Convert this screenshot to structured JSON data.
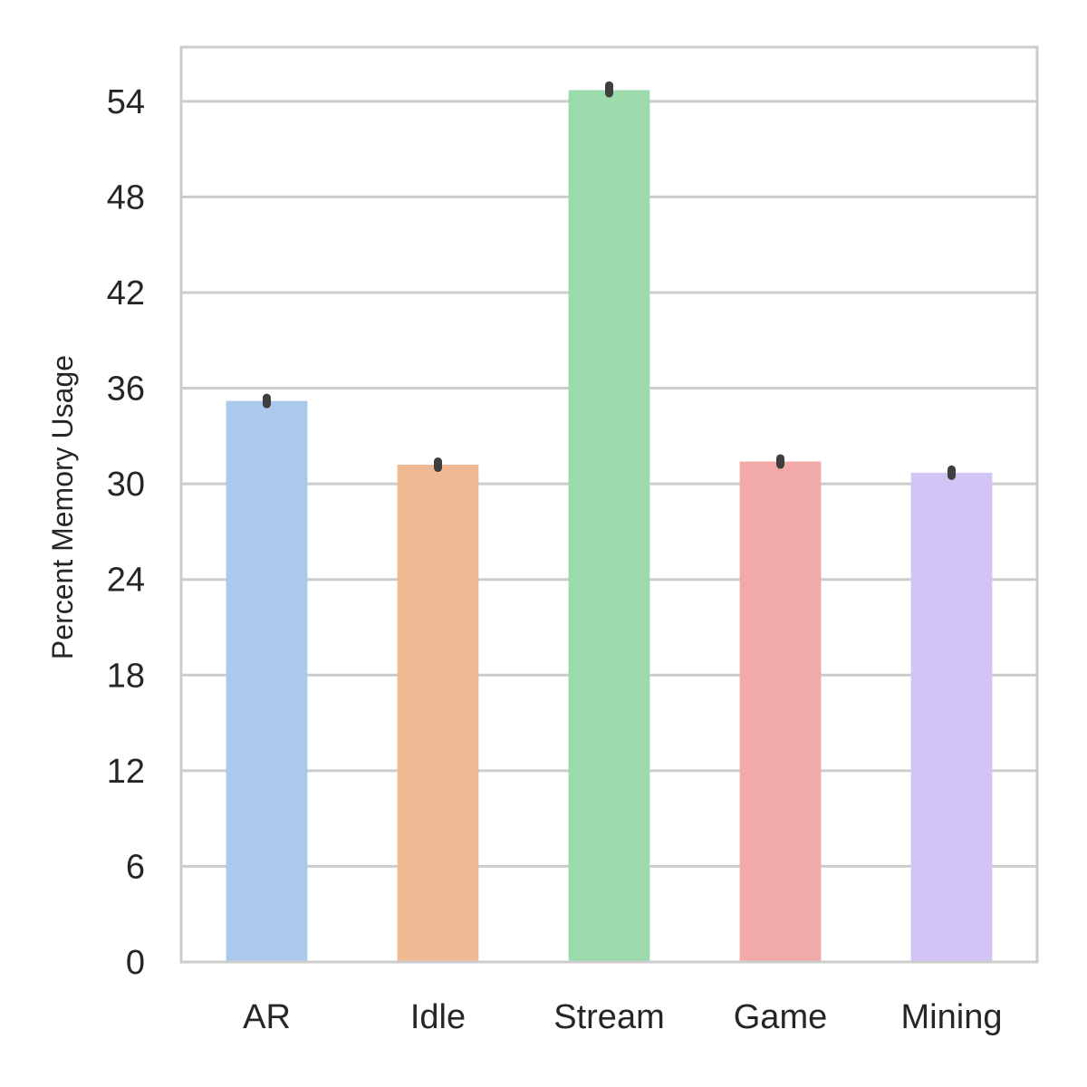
{
  "chart_data": {
    "type": "bar",
    "categories": [
      "AR",
      "Idle",
      "Stream",
      "Game",
      "Mining"
    ],
    "values": [
      35.2,
      31.2,
      54.7,
      31.4,
      30.7
    ],
    "error_bars": [
      [
        35.0,
        35.4
      ],
      [
        31.0,
        31.4
      ],
      [
        54.5,
        55.0
      ],
      [
        31.2,
        31.6
      ],
      [
        30.5,
        30.9
      ]
    ],
    "colors": [
      "#abc9ed",
      "#f1b894",
      "#9bdaab",
      "#f2aaa9",
      "#d2c5f6"
    ],
    "title": "",
    "xlabel": "",
    "ylabel": "Percent Memory Usage",
    "yticks": [
      0,
      6,
      12,
      18,
      24,
      30,
      36,
      42,
      48,
      54
    ],
    "ylim": [
      0,
      57.4
    ],
    "grid": "horizontal",
    "legend": "none"
  }
}
